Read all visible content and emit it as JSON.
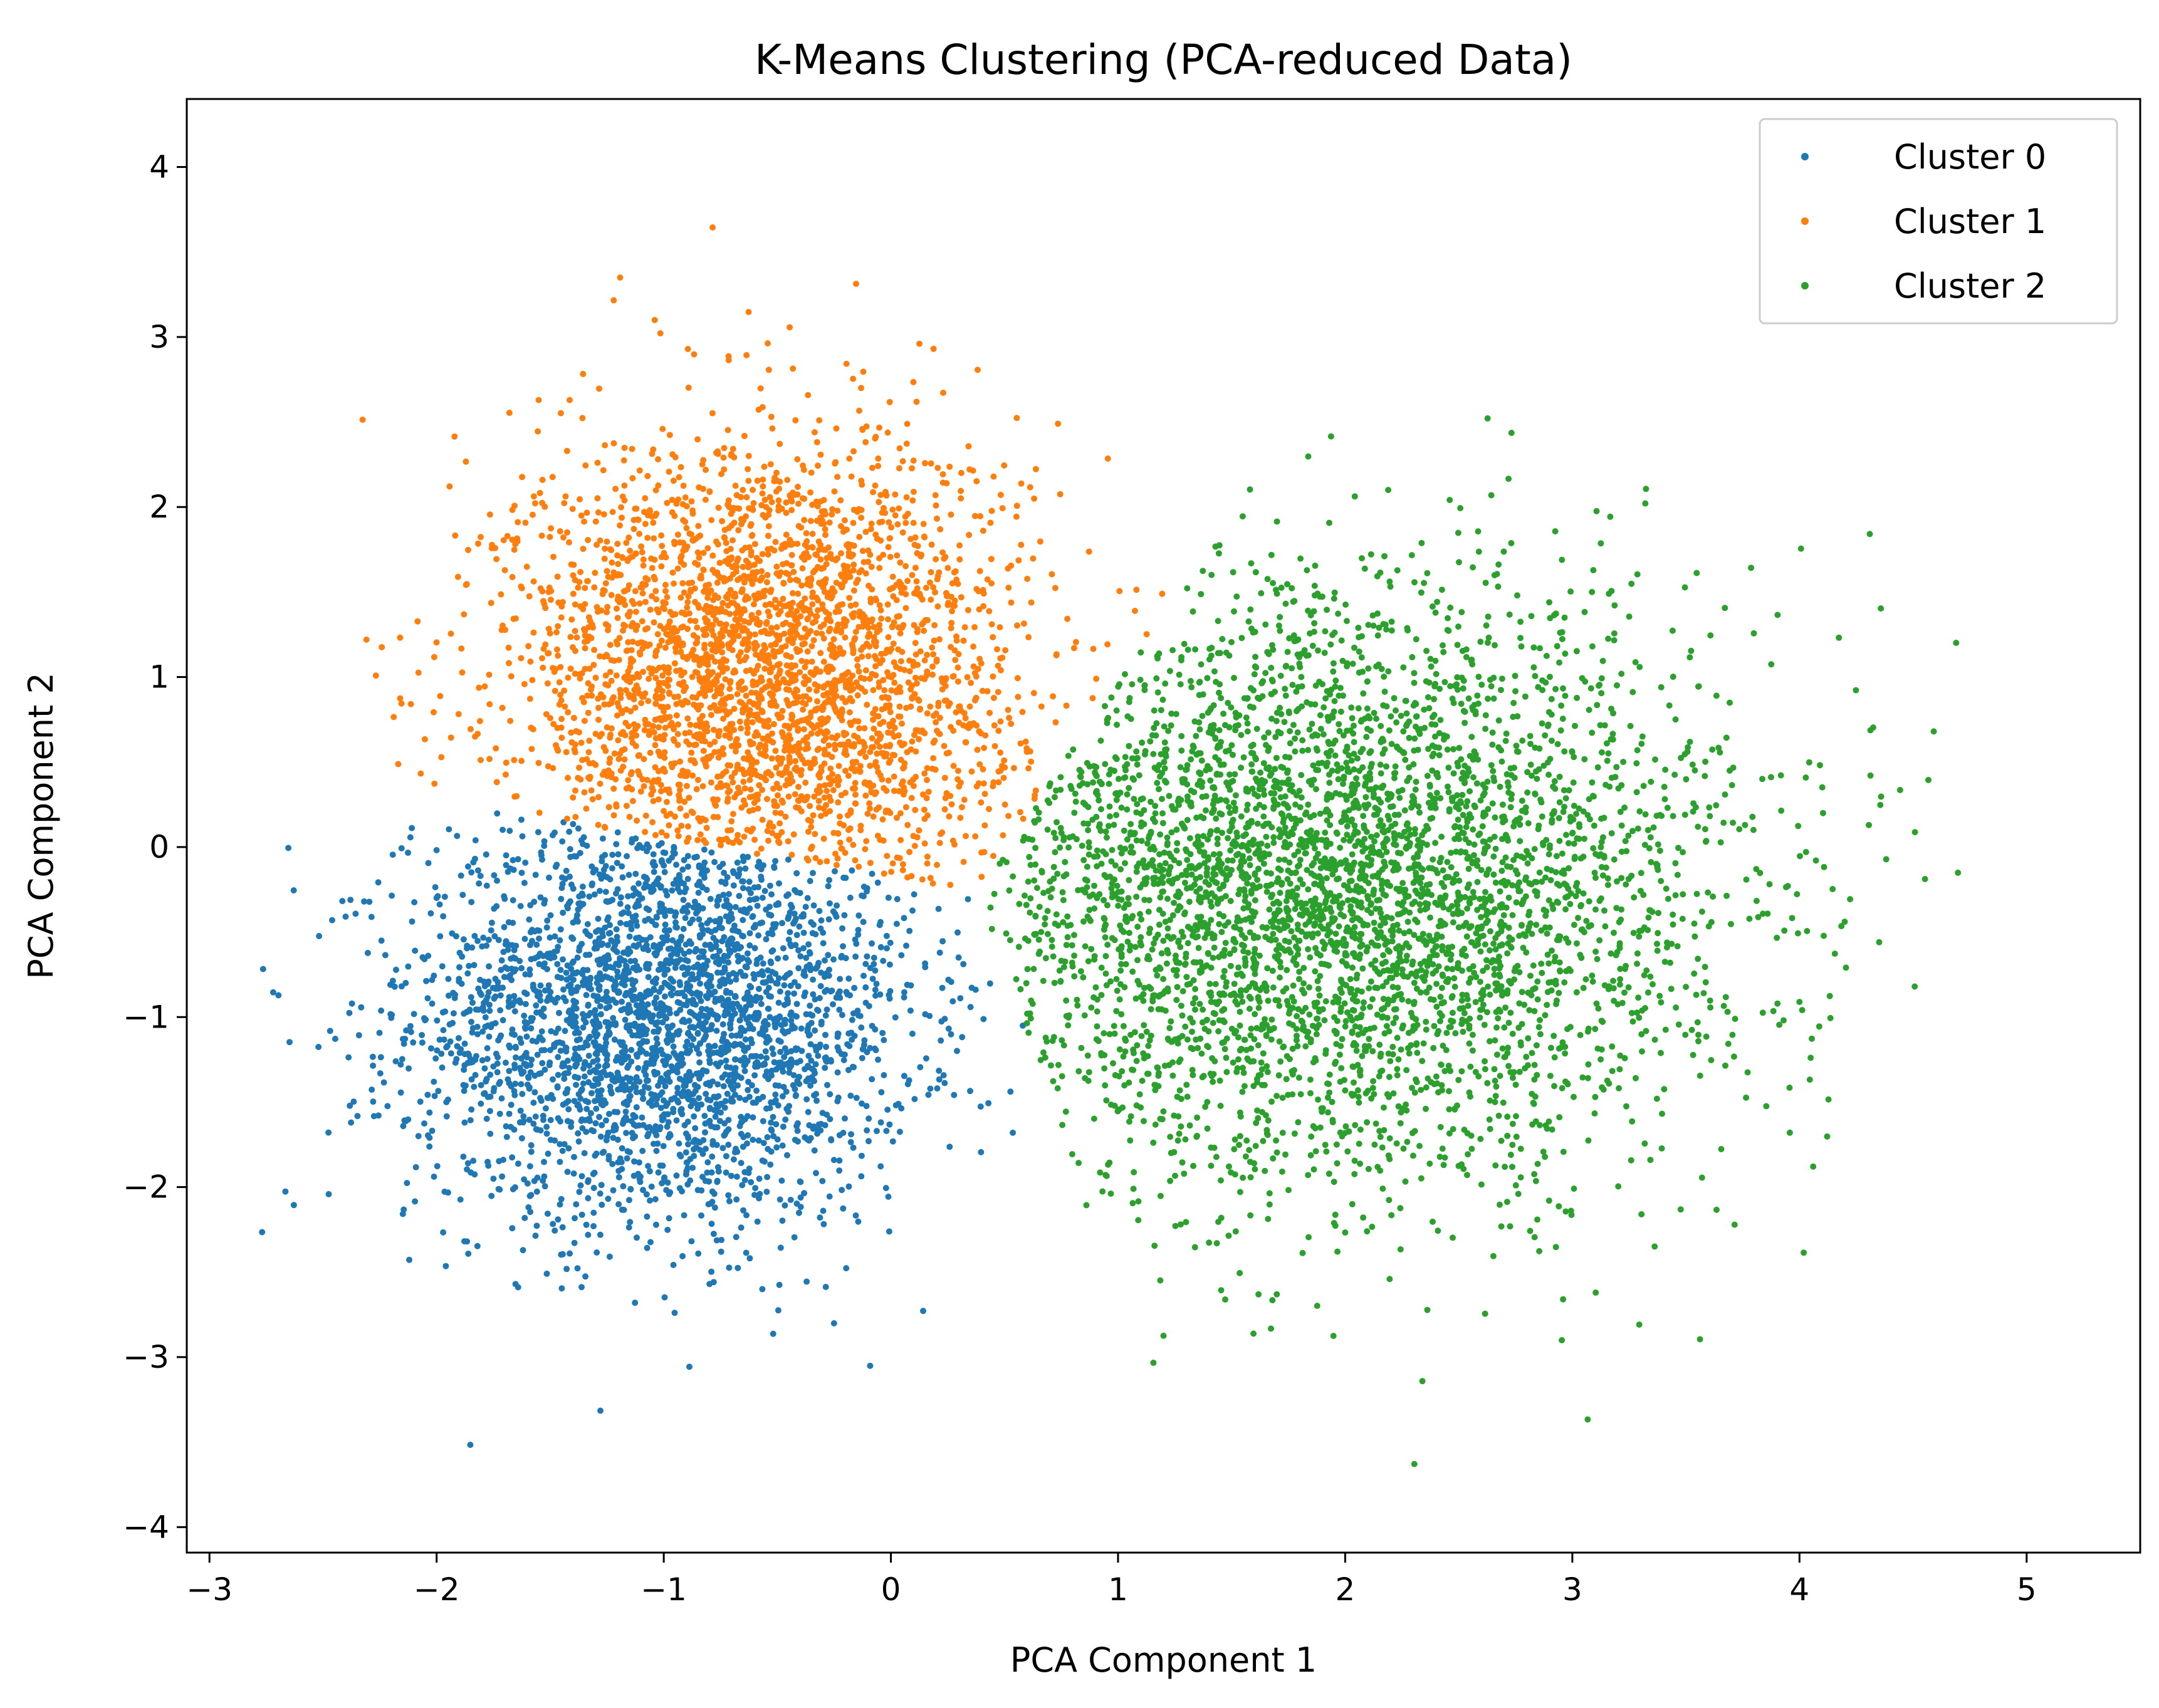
{
  "chart_data": {
    "type": "scatter",
    "title": "K-Means Clustering (PCA-reduced Data)",
    "xlabel": "PCA Component 1",
    "ylabel": "PCA Component 2",
    "xlim": [
      -3.1,
      5.5
    ],
    "ylim": [
      -4.15,
      4.4
    ],
    "x_ticks": [
      -3,
      -2,
      -1,
      0,
      1,
      2,
      3,
      4,
      5
    ],
    "y_ticks": [
      -4,
      -3,
      -2,
      -1,
      0,
      1,
      2,
      3,
      4
    ],
    "x_tick_labels": [
      "−3",
      "−2",
      "−1",
      "0",
      "1",
      "2",
      "3",
      "4",
      "5"
    ],
    "y_tick_labels": [
      "−4",
      "−3",
      "−2",
      "−1",
      "0",
      "1",
      "2",
      "3",
      "4"
    ],
    "grid": false,
    "legend_position": "top-right",
    "series": [
      {
        "name": "Cluster 0",
        "color": "#1f77b4",
        "center": [
          -1.0,
          -1.0
        ],
        "spread": [
          0.55,
          0.6
        ]
      },
      {
        "name": "Cluster 1",
        "color": "#ff7f0e",
        "center": [
          -0.55,
          1.0
        ],
        "spread": [
          0.55,
          0.7
        ]
      },
      {
        "name": "Cluster 2",
        "color": "#2ca02c",
        "center": [
          1.95,
          -0.25
        ],
        "spread": [
          0.85,
          0.85
        ]
      }
    ]
  }
}
